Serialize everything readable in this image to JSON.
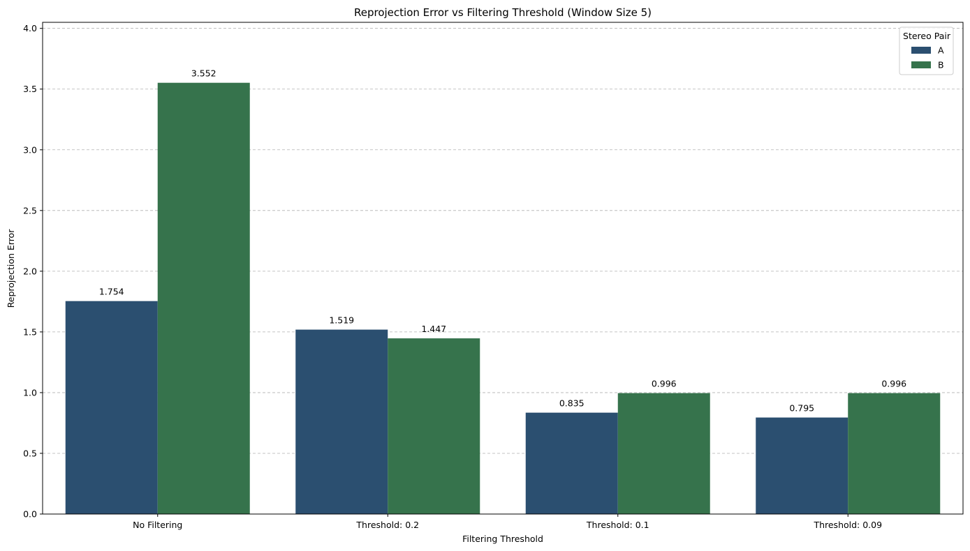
{
  "chart_data": {
    "type": "bar",
    "title": "Reprojection Error vs Filtering Threshold (Window Size 5)",
    "xlabel": "Filtering Threshold",
    "ylabel": "Reprojection Error",
    "categories": [
      "No Filtering",
      "Threshold: 0.2",
      "Threshold: 0.1",
      "Threshold: 0.09"
    ],
    "series": [
      {
        "name": "A",
        "values": [
          1.754,
          1.519,
          0.835,
          0.795
        ],
        "labels": [
          "1.754",
          "1.519",
          "0.835",
          "0.795"
        ],
        "color": "#2b4f70"
      },
      {
        "name": "B",
        "values": [
          3.552,
          1.447,
          0.996,
          0.996
        ],
        "labels": [
          "3.552",
          "1.447",
          "0.996",
          "0.996"
        ],
        "color": "#36734c"
      }
    ],
    "ylim": [
      0,
      4.05
    ],
    "yticks": [
      0.0,
      0.5,
      1.0,
      1.5,
      2.0,
      2.5,
      3.0,
      3.5,
      4.0
    ],
    "ytick_labels": [
      "0.0",
      "0.5",
      "1.0",
      "1.5",
      "2.0",
      "2.5",
      "3.0",
      "3.5",
      "4.0"
    ],
    "grid": "y-dashed",
    "legend": {
      "title": "Stereo Pair",
      "placement": "top-right"
    }
  }
}
